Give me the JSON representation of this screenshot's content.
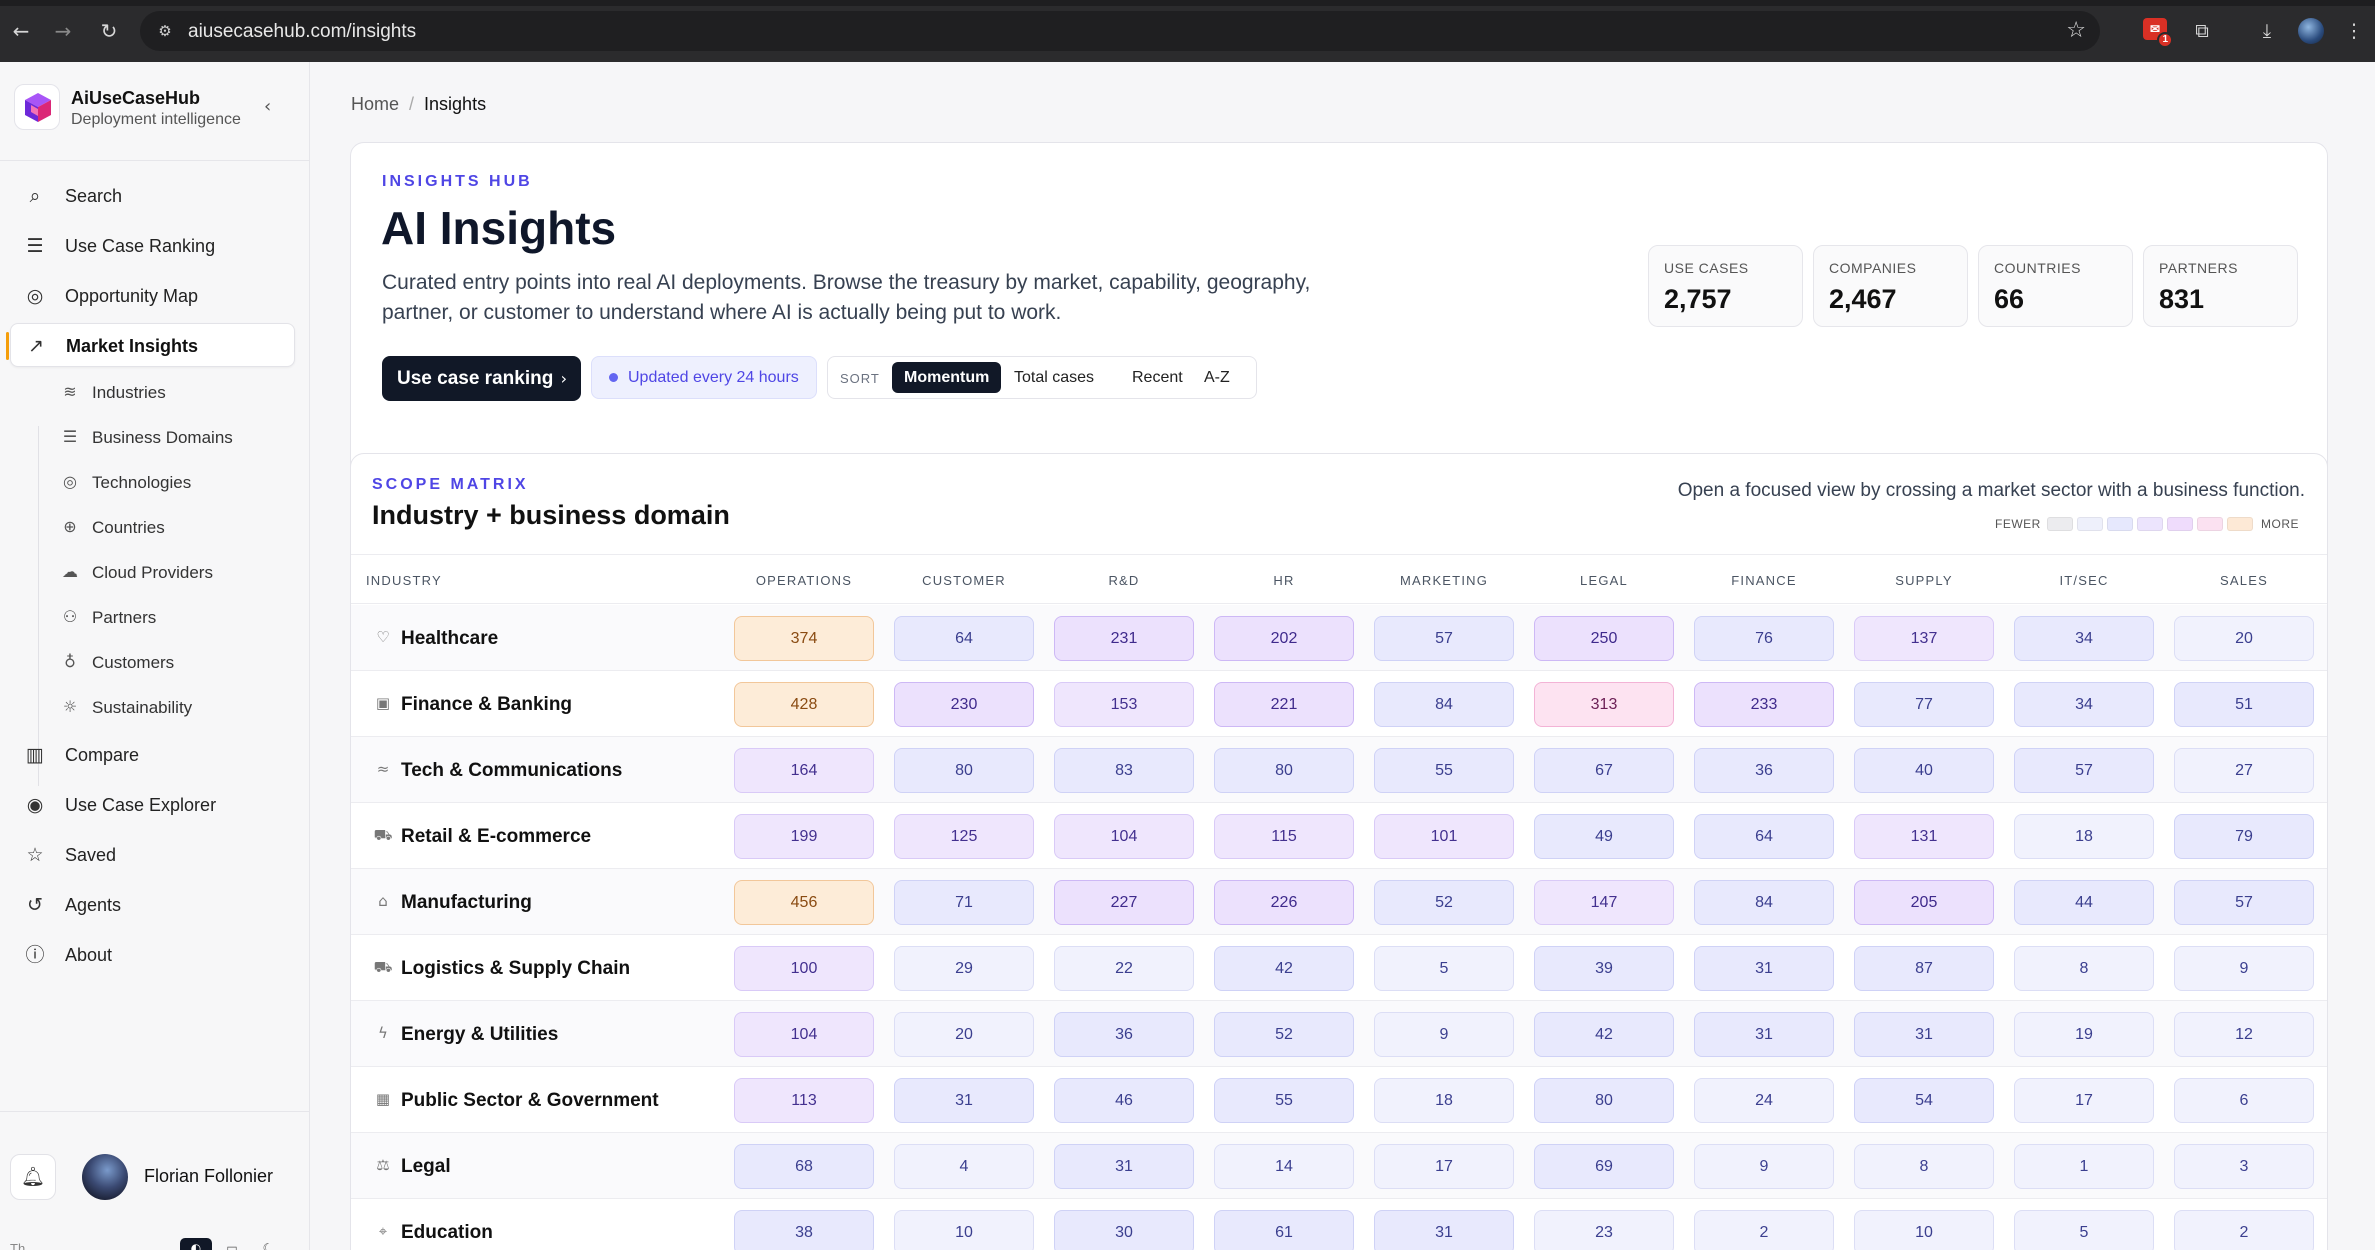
{
  "browser": {
    "url": "aiusecasehub.com/insights",
    "extension_badge_count": "1"
  },
  "brand": {
    "name": "AiUseCaseHub",
    "tagline": "Deployment intelligence"
  },
  "nav": {
    "items": [
      {
        "label": "Search",
        "icon": "search-icon"
      },
      {
        "label": "Use Case Ranking",
        "icon": "list-icon"
      },
      {
        "label": "Opportunity Map",
        "icon": "compass-icon"
      },
      {
        "label": "Market Insights",
        "icon": "trend-icon",
        "active": true
      },
      {
        "label": "Compare",
        "icon": "bar-chart-icon"
      },
      {
        "label": "Use Case Explorer",
        "icon": "explore-icon"
      },
      {
        "label": "Saved",
        "icon": "star-icon"
      },
      {
        "label": "Agents",
        "icon": "history-icon"
      },
      {
        "label": "About",
        "icon": "info-icon"
      }
    ],
    "sub_items": [
      {
        "label": "Industries",
        "icon": "layers-icon"
      },
      {
        "label": "Business Domains",
        "icon": "list-icon"
      },
      {
        "label": "Technologies",
        "icon": "compass-icon"
      },
      {
        "label": "Countries",
        "icon": "globe-icon"
      },
      {
        "label": "Cloud Providers",
        "icon": "cloud-icon"
      },
      {
        "label": "Partners",
        "icon": "users-icon"
      },
      {
        "label": "Customers",
        "icon": "badge-icon"
      },
      {
        "label": "Sustainability",
        "icon": "sun-icon"
      }
    ]
  },
  "user": {
    "name": "Florian Follonier"
  },
  "theme": {
    "label": "Th"
  },
  "breadcrumb": {
    "home": "Home",
    "current": "Insights"
  },
  "hero": {
    "eyebrow": "INSIGHTS HUB",
    "title": "AI Insights",
    "description": "Curated entry points into real AI deployments. Browse the treasury by market, capability, geography, partner, or customer to understand where AI is actually being put to work.",
    "cta_label": "Use case ranking",
    "updated_label": "Updated every 24 hours",
    "sort_label": "SORT",
    "sort_options": [
      "Momentum",
      "Total cases",
      "Recent",
      "A-Z"
    ],
    "sort_selected": "Momentum",
    "stats": [
      {
        "label": "USE CASES",
        "value": "2,757"
      },
      {
        "label": "COMPANIES",
        "value": "2,467"
      },
      {
        "label": "COUNTRIES",
        "value": "66"
      },
      {
        "label": "PARTNERS",
        "value": "831"
      }
    ]
  },
  "matrix": {
    "eyebrow": "SCOPE MATRIX",
    "title": "Industry + business domain",
    "hint": "Open a focused view by crossing a market sector with a business function.",
    "legend_low": "FEWER",
    "legend_high": "MORE",
    "legend_colors": [
      "#ececef",
      "#eef0fb",
      "#e6e8fd",
      "#ece4fd",
      "#efdcfc",
      "#fbe1f1",
      "#fde9d6"
    ],
    "industry_header": "INDUSTRY",
    "columns": [
      "OPERATIONS",
      "CUSTOMER",
      "R&D",
      "HR",
      "MARKETING",
      "LEGAL",
      "FINANCE",
      "SUPPLY",
      "IT/SEC",
      "SALES"
    ],
    "rows": [
      {
        "name": "Healthcare",
        "icon": "heart-icon",
        "values": [
          374,
          64,
          231,
          202,
          57,
          250,
          76,
          137,
          34,
          20
        ]
      },
      {
        "name": "Finance & Banking",
        "icon": "banknote-icon",
        "values": [
          428,
          230,
          153,
          221,
          84,
          313,
          233,
          77,
          34,
          51
        ]
      },
      {
        "name": "Tech & Communications",
        "icon": "wifi-icon",
        "values": [
          164,
          80,
          83,
          80,
          55,
          67,
          36,
          40,
          57,
          27
        ]
      },
      {
        "name": "Retail & E-commerce",
        "icon": "cart-icon",
        "values": [
          199,
          125,
          104,
          115,
          101,
          49,
          64,
          131,
          18,
          79
        ]
      },
      {
        "name": "Manufacturing",
        "icon": "factory-icon",
        "values": [
          456,
          71,
          227,
          226,
          52,
          147,
          84,
          205,
          44,
          57
        ]
      },
      {
        "name": "Logistics & Supply Chain",
        "icon": "truck-icon",
        "values": [
          100,
          29,
          22,
          42,
          5,
          39,
          31,
          87,
          8,
          9
        ]
      },
      {
        "name": "Energy & Utilities",
        "icon": "bolt-icon",
        "values": [
          104,
          20,
          36,
          52,
          9,
          42,
          31,
          31,
          19,
          12
        ]
      },
      {
        "name": "Public Sector & Government",
        "icon": "building-icon",
        "values": [
          113,
          31,
          46,
          55,
          18,
          80,
          24,
          54,
          17,
          6
        ]
      },
      {
        "name": "Legal",
        "icon": "scales-icon",
        "values": [
          68,
          4,
          31,
          14,
          17,
          69,
          9,
          8,
          1,
          3
        ]
      },
      {
        "name": "Education",
        "icon": "graduation-icon",
        "values": [
          38,
          10,
          30,
          61,
          31,
          23,
          2,
          10,
          5,
          2
        ]
      }
    ]
  }
}
